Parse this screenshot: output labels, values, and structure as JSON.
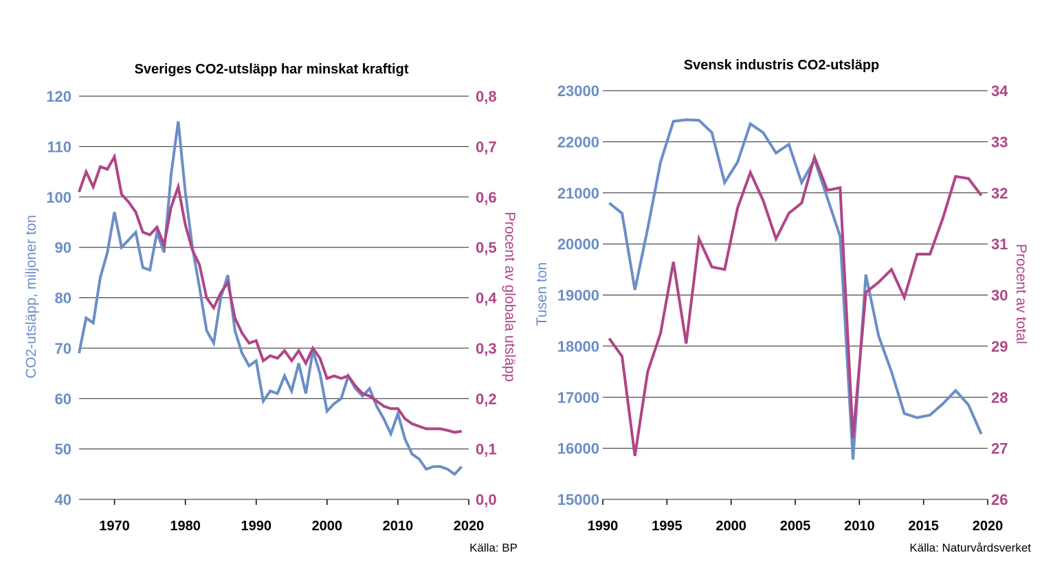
{
  "colors": {
    "primary": "#6b8ec6",
    "secondary": "#b04587",
    "grid": "#222222",
    "text": "#000000"
  },
  "chart_data": [
    {
      "type": "line",
      "title": "Sveriges CO2-utsläpp har minskat kraftigt",
      "ylabel": "CO2-utsläpp, miljoner ton",
      "y2label": "Procent av globala utsläpp",
      "source": "Källa: BP",
      "xlim": [
        1965,
        2019
      ],
      "ylim": [
        40,
        120
      ],
      "y2lim": [
        0.0,
        0.8
      ],
      "xticks": [
        1970,
        1980,
        1990,
        2000,
        2010,
        2020
      ],
      "xtick_labels": [
        "1970",
        "1980",
        "1990",
        "2000",
        "2010",
        "2020"
      ],
      "yticks": [
        40,
        50,
        60,
        70,
        80,
        90,
        100,
        110,
        120
      ],
      "ytick_labels": [
        "40",
        "50",
        "60",
        "70",
        "80",
        "90",
        "100",
        "110",
        "120"
      ],
      "y2ticks": [
        0.0,
        0.1,
        0.2,
        0.3,
        0.4,
        0.5,
        0.6,
        0.7,
        0.8
      ],
      "y2tick_labels": [
        "0,0",
        "0,1",
        "0,2",
        "0,3",
        "0,4",
        "0,5",
        "0,6",
        "0,7",
        "0,8"
      ],
      "grid": true,
      "x": [
        1965,
        1966,
        1967,
        1968,
        1969,
        1970,
        1971,
        1972,
        1973,
        1974,
        1975,
        1976,
        1977,
        1978,
        1979,
        1980,
        1981,
        1982,
        1983,
        1984,
        1985,
        1986,
        1987,
        1988,
        1989,
        1990,
        1991,
        1992,
        1993,
        1994,
        1995,
        1996,
        1997,
        1998,
        1999,
        2000,
        2001,
        2002,
        2003,
        2004,
        2005,
        2006,
        2007,
        2008,
        2009,
        2010,
        2011,
        2012,
        2013,
        2014,
        2015,
        2016,
        2017,
        2018,
        2019
      ],
      "series": [
        {
          "name": "CO2-utsläpp, miljoner ton",
          "axis": "left",
          "color": "#6b8ec6",
          "values": [
            69,
            76,
            75,
            84,
            89,
            97,
            90,
            91.5,
            93,
            86,
            85.5,
            93,
            89,
            104.5,
            115,
            101,
            90,
            82,
            73.5,
            71,
            80,
            84.5,
            73.5,
            69,
            66.5,
            67.5,
            59.5,
            61.5,
            61,
            64.5,
            61.5,
            67,
            61,
            69.5,
            65,
            57.5,
            59,
            60,
            64.5,
            62,
            60.5,
            62,
            58.5,
            56,
            53,
            57,
            52,
            49,
            48,
            46,
            46.5,
            46.5,
            46,
            45,
            46.5
          ]
        },
        {
          "name": "Procent av globala utsläpp",
          "axis": "right",
          "color": "#b04587",
          "values": [
            0.61,
            0.65,
            0.62,
            0.66,
            0.655,
            0.68,
            0.605,
            0.59,
            0.57,
            0.53,
            0.525,
            0.54,
            0.505,
            0.58,
            0.62,
            0.545,
            0.495,
            0.465,
            0.4,
            0.38,
            0.41,
            0.43,
            0.36,
            0.33,
            0.31,
            0.315,
            0.275,
            0.285,
            0.28,
            0.295,
            0.275,
            0.295,
            0.27,
            0.3,
            0.28,
            0.24,
            0.245,
            0.24,
            0.245,
            0.225,
            0.21,
            0.205,
            0.195,
            0.185,
            0.18,
            0.18,
            0.16,
            0.15,
            0.145,
            0.14,
            0.14,
            0.14,
            0.137,
            0.133,
            0.135
          ]
        }
      ]
    },
    {
      "type": "line",
      "title": "Svensk industris CO2-utsläpp",
      "ylabel": "Tusen ton",
      "y2label": "Procent av total",
      "source": "Källa: Naturvårdsverket",
      "xlim": [
        1990,
        2020
      ],
      "ylim": [
        15000,
        23000
      ],
      "y2lim": [
        26,
        34
      ],
      "xticks": [
        1990,
        1995,
        2000,
        2005,
        2010,
        2015,
        2020
      ],
      "xtick_labels": [
        "1990",
        "1995",
        "2000",
        "2005",
        "2010",
        "2015",
        "2020"
      ],
      "yticks": [
        15000,
        16000,
        17000,
        18000,
        19000,
        20000,
        21000,
        22000,
        23000
      ],
      "ytick_labels": [
        "15000",
        "16000",
        "17000",
        "18000",
        "19000",
        "20000",
        "21000",
        "22000",
        "23000"
      ],
      "y2ticks": [
        26,
        27,
        28,
        29,
        30,
        31,
        32,
        33,
        34
      ],
      "y2tick_labels": [
        "26",
        "27",
        "28",
        "29",
        "30",
        "31",
        "32",
        "33",
        "34"
      ],
      "grid": true,
      "x": [
        1990.5,
        1991.5,
        1992.5,
        1993.5,
        1994.5,
        1995.5,
        1996.5,
        1997.5,
        1998.5,
        1999.5,
        2000.5,
        2001.5,
        2002.5,
        2003.5,
        2004.5,
        2005.5,
        2006.5,
        2007.5,
        2008.5,
        2009.5,
        2010.5,
        2011.5,
        2012.5,
        2013.5,
        2014.5,
        2015.5,
        2016.5,
        2017.5,
        2018.5,
        2019.5
      ],
      "series": [
        {
          "name": "Tusen ton",
          "axis": "left",
          "color": "#6b8ec6",
          "values": [
            20800,
            20600,
            19100,
            20300,
            21600,
            22400,
            22430,
            22420,
            22180,
            21200,
            21600,
            22350,
            22180,
            21780,
            21950,
            21200,
            21650,
            20900,
            20150,
            15780,
            19400,
            18200,
            17500,
            16680,
            16600,
            16650,
            16870,
            17130,
            16850,
            16280
          ]
        },
        {
          "name": "Procent av total",
          "axis": "right",
          "color": "#b04587",
          "values": [
            29.15,
            28.8,
            26.85,
            28.5,
            29.25,
            30.65,
            29.05,
            31.1,
            30.55,
            30.5,
            31.7,
            32.4,
            31.85,
            31.1,
            31.6,
            31.8,
            32.7,
            32.05,
            32.1,
            27.2,
            30.05,
            30.25,
            30.5,
            29.95,
            30.8,
            30.8,
            31.5,
            32.32,
            32.28,
            31.95
          ]
        }
      ]
    }
  ]
}
